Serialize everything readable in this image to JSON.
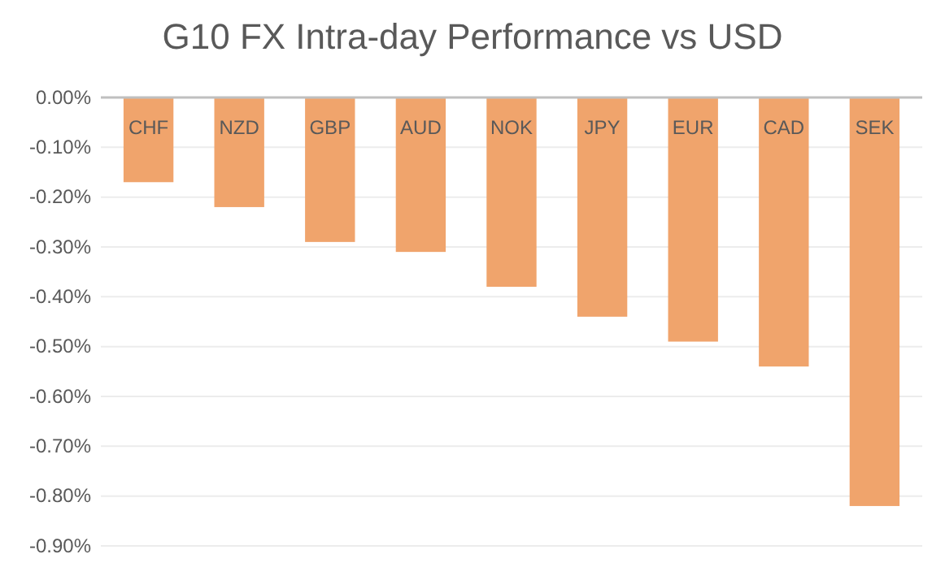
{
  "chart_data": {
    "type": "bar",
    "title": "G10 FX Intra-day Performance vs USD",
    "categories": [
      "CHF",
      "NZD",
      "GBP",
      "AUD",
      "NOK",
      "JPY",
      "EUR",
      "CAD",
      "SEK"
    ],
    "values": [
      -0.17,
      -0.22,
      -0.29,
      -0.31,
      -0.38,
      -0.44,
      -0.49,
      -0.54,
      -0.82
    ],
    "color": "#f0a46c",
    "ylim": [
      -0.9,
      0
    ],
    "yticks": [
      {
        "value": 0,
        "label": "0.00%"
      },
      {
        "value": -0.1,
        "label": "-0.10%"
      },
      {
        "value": -0.2,
        "label": "-0.20%"
      },
      {
        "value": -0.3,
        "label": "-0.30%"
      },
      {
        "value": -0.4,
        "label": "-0.40%"
      },
      {
        "value": -0.5,
        "label": "-0.50%"
      },
      {
        "value": -0.6,
        "label": "-0.60%"
      },
      {
        "value": -0.7,
        "label": "-0.70%"
      },
      {
        "value": -0.8,
        "label": "-0.80%"
      },
      {
        "value": -0.9,
        "label": "-0.90%"
      }
    ],
    "grid": "y"
  }
}
